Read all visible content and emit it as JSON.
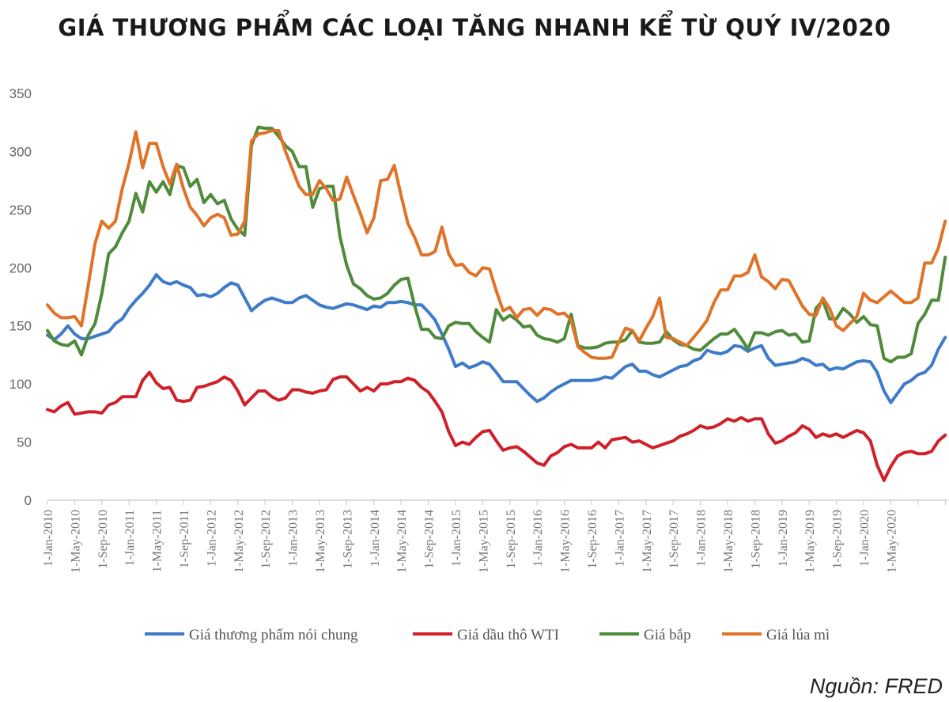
{
  "title": "GIÁ THƯƠNG PHẨM CÁC LOẠI TĂNG NHANH KỂ TỪ QUÝ IV/2020",
  "source": "Nguồn: FRED",
  "chart_data": {
    "type": "line",
    "title": "GIÁ THƯƠNG PHẨM CÁC LOẠI TĂNG NHANH KỂ TỪ QUÝ IV/2020",
    "xlabel": "",
    "ylabel": "",
    "ylim": [
      0,
      350
    ],
    "yticks": [
      0,
      50,
      100,
      150,
      200,
      250,
      300,
      350
    ],
    "grid": false,
    "legend_position": "bottom",
    "x_start": "2010-01",
    "x_end": "2021-01",
    "x_frequency": "monthly",
    "xtick_labels": [
      "1-Jan-2010",
      "1-May-2010",
      "1-Sep-2010",
      "1-Jan-2011",
      "1-May-2011",
      "1-Sep-2011",
      "1-Jan-2012",
      "1-May-2012",
      "1-Sep-2012",
      "1-Jan-2013",
      "1-May-2013",
      "1-Sep-2013",
      "1-Jan-2014",
      "1-May-2014",
      "1-Sep-2014",
      "1-Jan-2015",
      "1-May-2015",
      "1-Sep-2015",
      "1-Jan-2016",
      "1-May-2016",
      "1-Sep-2016",
      "1-Jan-2017",
      "1-May-2017",
      "1-Sep-2017",
      "1-Jan-2018",
      "1-May-2018",
      "1-Sep-2018",
      "1-Jan-2019",
      "1-May-2019",
      "1-Sep-2019",
      "1-Jan-2020",
      "1-May-2020",
      "",
      ""
    ],
    "series": [
      {
        "name": "Giá thương phẩm nói chung",
        "color": "#3e7bc9",
        "values": [
          142,
          138,
          143,
          150,
          143,
          139,
          139,
          141,
          143,
          145,
          152,
          156,
          165,
          172,
          178,
          185,
          194,
          188,
          186,
          188,
          185,
          183,
          176,
          177,
          175,
          178,
          183,
          187,
          185,
          174,
          163,
          168,
          172,
          174,
          172,
          170,
          170,
          174,
          176,
          172,
          168,
          166,
          165,
          167,
          169,
          168,
          166,
          164,
          167,
          166,
          170,
          170,
          171,
          170,
          168,
          168,
          162,
          155,
          143,
          130,
          115,
          118,
          114,
          116,
          119,
          117,
          110,
          102,
          102,
          102,
          96,
          90,
          85,
          88,
          93,
          97,
          100,
          103,
          103,
          103,
          103,
          104,
          106,
          105,
          110,
          115,
          117,
          111,
          111,
          108,
          106,
          109,
          112,
          115,
          116,
          120,
          122,
          129,
          127,
          126,
          128,
          133,
          132,
          128,
          131,
          133,
          122,
          116,
          117,
          118,
          119,
          122,
          120,
          116,
          117,
          112,
          114,
          113,
          116,
          119,
          120,
          119,
          110,
          94,
          84,
          92,
          100,
          103,
          108,
          110,
          116,
          130,
          140
        ]
      },
      {
        "name": "Giá dầu thô WTI",
        "color": "#d0202a",
        "values": [
          78,
          76,
          81,
          84,
          74,
          75,
          76,
          76,
          75,
          82,
          84,
          89,
          89,
          89,
          103,
          110,
          101,
          96,
          97,
          86,
          85,
          86,
          97,
          98,
          100,
          102,
          106,
          103,
          94,
          82,
          88,
          94,
          94,
          89,
          86,
          88,
          95,
          95,
          93,
          92,
          94,
          95,
          104,
          106,
          106,
          100,
          94,
          97,
          94,
          100,
          100,
          102,
          102,
          105,
          103,
          97,
          93,
          85,
          76,
          59,
          47,
          50,
          48,
          54,
          59,
          60,
          51,
          43,
          45,
          46,
          42,
          37,
          32,
          30,
          38,
          41,
          46,
          48,
          45,
          45,
          45,
          50,
          45,
          52,
          53,
          54,
          50,
          51,
          48,
          45,
          47,
          49,
          51,
          55,
          57,
          60,
          64,
          62,
          63,
          66,
          70,
          68,
          71,
          68,
          70,
          70,
          57,
          49,
          51,
          55,
          58,
          64,
          61,
          54,
          57,
          55,
          57,
          54,
          57,
          60,
          58,
          51,
          30,
          17,
          29,
          38,
          41,
          42,
          40,
          40,
          42,
          51,
          56
        ]
      },
      {
        "name": "Giá bắp",
        "color": "#4e8b3a",
        "values": [
          146,
          137,
          134,
          133,
          137,
          125,
          142,
          152,
          178,
          212,
          218,
          230,
          240,
          264,
          248,
          274,
          265,
          274,
          263,
          288,
          286,
          270,
          276,
          256,
          263,
          255,
          258,
          242,
          233,
          228,
          305,
          321,
          320,
          320,
          313,
          305,
          300,
          287,
          287,
          252,
          268,
          270,
          270,
          227,
          202,
          186,
          182,
          176,
          173,
          174,
          178,
          185,
          190,
          191,
          167,
          147,
          147,
          140,
          139,
          150,
          153,
          152,
          152,
          145,
          140,
          136,
          164,
          155,
          159,
          155,
          149,
          150,
          142,
          139,
          138,
          136,
          139,
          160,
          133,
          131,
          131,
          132,
          135,
          136,
          136,
          138,
          146,
          136,
          135,
          135,
          136,
          145,
          138,
          134,
          133,
          130,
          129,
          134,
          139,
          143,
          143,
          147,
          139,
          130,
          144,
          144,
          142,
          145,
          146,
          142,
          143,
          136,
          137,
          165,
          172,
          156,
          156,
          165,
          160,
          153,
          158,
          151,
          150,
          122,
          119,
          123,
          123,
          126,
          152,
          160,
          172,
          172,
          209
        ]
      },
      {
        "name": "Giá lúa mì",
        "color": "#e07328",
        "values": [
          168,
          161,
          157,
          157,
          158,
          150,
          185,
          221,
          240,
          234,
          240,
          268,
          290,
          317,
          286,
          307,
          307,
          287,
          272,
          289,
          268,
          252,
          245,
          236,
          243,
          246,
          243,
          228,
          229,
          240,
          309,
          315,
          316,
          318,
          318,
          300,
          285,
          270,
          263,
          263,
          275,
          268,
          258,
          259,
          278,
          262,
          247,
          230,
          243,
          275,
          276,
          288,
          262,
          238,
          226,
          211,
          211,
          214,
          235,
          212,
          202,
          203,
          196,
          193,
          200,
          199,
          180,
          163,
          166,
          157,
          164,
          165,
          159,
          165,
          164,
          160,
          161,
          155,
          132,
          127,
          123,
          122,
          122,
          123,
          136,
          148,
          146,
          137,
          148,
          158,
          174,
          140,
          139,
          136,
          133,
          140,
          147,
          155,
          170,
          181,
          181,
          193,
          193,
          196,
          211,
          192,
          188,
          182,
          190,
          189,
          178,
          167,
          160,
          159,
          174,
          165,
          150,
          146,
          152,
          158,
          178,
          172,
          170,
          175,
          180,
          175,
          170,
          170,
          174,
          204,
          204,
          217,
          240
        ]
      }
    ]
  }
}
